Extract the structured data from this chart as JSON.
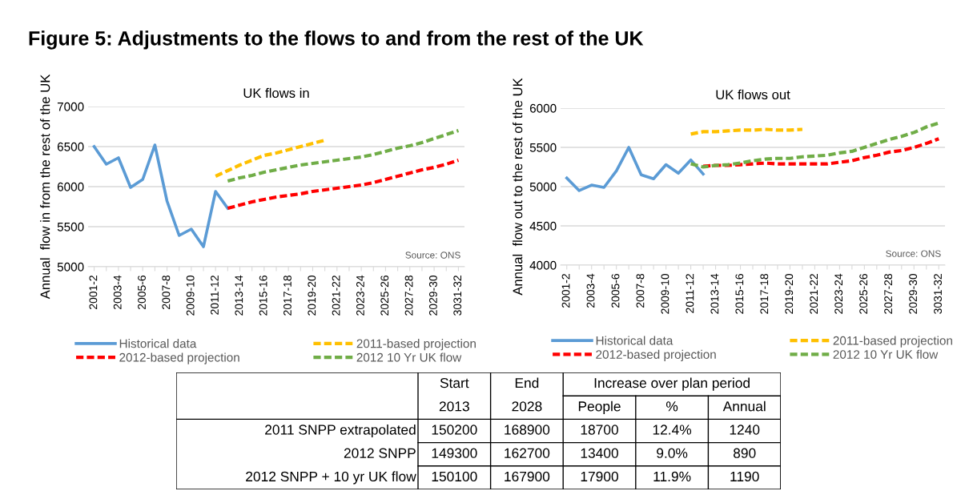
{
  "chart_data": [
    {
      "type": "line",
      "title": "UK flows in",
      "ylabel": "Annual  flow in from the rest of the UK",
      "annotations": [
        "Figure 5: Adjustments to the flows to and from the rest of the UK",
        "Source: ONS"
      ],
      "categories": [
        "2001-2",
        null,
        "2003-4",
        null,
        "2005-6",
        null,
        "2007-8",
        null,
        "2009-10",
        null,
        "2011-12",
        null,
        "2013-14",
        null,
        "2015-16",
        null,
        "2017-18",
        null,
        "2019-20",
        null,
        "2021-22",
        null,
        "2023-24",
        null,
        "2025-26",
        null,
        "2027-28",
        null,
        "2029-30",
        null,
        "3031-32"
      ],
      "ylim": [
        5000,
        7000
      ],
      "yticks": [
        5000,
        5500,
        6000,
        6500,
        7000
      ],
      "grid": "y",
      "legend": "bottom",
      "series": [
        {
          "name": "Historical data",
          "color": "#5b9bd5",
          "line_style": "solid",
          "values": [
            6500,
            6280,
            6360,
            5990,
            6090,
            6520,
            5820,
            5390,
            5470,
            5250,
            5940,
            5730,
            null,
            null,
            null,
            null,
            null,
            null,
            null,
            null,
            null,
            null,
            null,
            null,
            null,
            null,
            null,
            null,
            null,
            null,
            null
          ]
        },
        {
          "name": "2011-based projection",
          "color": "#ffc000",
          "line_style": "dashed",
          "values": [
            null,
            null,
            null,
            null,
            null,
            null,
            null,
            null,
            null,
            null,
            6130,
            6200,
            6270,
            6330,
            6390,
            6420,
            6460,
            6500,
            6540,
            6580,
            null,
            null,
            null,
            null,
            null,
            null,
            null,
            null,
            null,
            null,
            null
          ]
        },
        {
          "name": "2012-based projection",
          "color": "#ff0000",
          "line_style": "dashed",
          "values": [
            null,
            null,
            null,
            null,
            null,
            null,
            null,
            null,
            null,
            null,
            null,
            5730,
            5770,
            5810,
            5840,
            5870,
            5890,
            5910,
            5940,
            5960,
            5980,
            6000,
            6020,
            6050,
            6090,
            6130,
            6170,
            6210,
            6240,
            6280,
            6330
          ]
        },
        {
          "name": "2012 10 Yr UK flow",
          "color": "#70ad47",
          "line_style": "dashed",
          "values": [
            null,
            null,
            null,
            null,
            null,
            null,
            null,
            null,
            null,
            null,
            null,
            6070,
            6110,
            6140,
            6180,
            6210,
            6240,
            6270,
            6290,
            6310,
            6330,
            6350,
            6370,
            6400,
            6440,
            6480,
            6510,
            6550,
            6600,
            6650,
            6700
          ]
        }
      ]
    },
    {
      "type": "line",
      "title": "UK flows out",
      "ylabel": "Annual  flow out to the rest of the UK",
      "annotations": [
        "Source: ONS"
      ],
      "categories": [
        "2001-2",
        null,
        "2003-4",
        null,
        "2005-6",
        null,
        "2007-8",
        null,
        "2009-10",
        null,
        "2011-12",
        null,
        "2013-14",
        null,
        "2015-16",
        null,
        "2017-18",
        null,
        "2019-20",
        null,
        "2021-22",
        null,
        "2023-24",
        null,
        "2025-26",
        null,
        "2027-28",
        null,
        "2029-30",
        null,
        "3031-32"
      ],
      "ylim": [
        4000,
        6000
      ],
      "yticks": [
        4000,
        4500,
        5000,
        5500,
        6000
      ],
      "grid": "y",
      "legend": "bottom",
      "series": [
        {
          "name": "Historical data",
          "color": "#5b9bd5",
          "line_style": "solid",
          "values": [
            5110,
            4950,
            5020,
            4990,
            5200,
            5500,
            5150,
            5100,
            5280,
            5170,
            5340,
            5160,
            null,
            null,
            null,
            null,
            null,
            null,
            null,
            null,
            null,
            null,
            null,
            null,
            null,
            null,
            null,
            null,
            null,
            null,
            null
          ]
        },
        {
          "name": "2011-based projection",
          "color": "#ffc000",
          "line_style": "dashed",
          "values": [
            null,
            null,
            null,
            null,
            null,
            null,
            null,
            null,
            null,
            null,
            5670,
            5700,
            5700,
            5710,
            5720,
            5720,
            5730,
            5720,
            5720,
            5730,
            null,
            null,
            null,
            null,
            null,
            null,
            null,
            null,
            null,
            null,
            null
          ]
        },
        {
          "name": "2012-based projection",
          "color": "#ff0000",
          "line_style": "dashed",
          "values": [
            null,
            null,
            null,
            null,
            null,
            null,
            null,
            null,
            null,
            null,
            null,
            5260,
            5270,
            5270,
            5280,
            5290,
            5300,
            5290,
            5290,
            5290,
            5290,
            5290,
            5310,
            5330,
            5370,
            5400,
            5440,
            5460,
            5500,
            5550,
            5610
          ]
        },
        {
          "name": "2012 10 Yr UK flow",
          "color": "#70ad47",
          "line_style": "dashed",
          "values": [
            null,
            null,
            null,
            null,
            null,
            null,
            null,
            null,
            null,
            null,
            5290,
            5250,
            5270,
            5280,
            5300,
            5330,
            5350,
            5360,
            5360,
            5380,
            5390,
            5400,
            5430,
            5450,
            5500,
            5550,
            5600,
            5640,
            5690,
            5760,
            5810
          ]
        }
      ]
    },
    {
      "type": "other",
      "annotations": [
        "Increase over plan period"
      ],
      "categories": [
        "Start\n2013",
        "End\n2028",
        "People",
        "%",
        "Annual"
      ],
      "y_categories": [
        "2011 SNPP extrapolated",
        "2012 SNPP",
        "2012 SNPP + 10 yr UK flow"
      ],
      "cell_labels": [
        [
          "150200",
          "168900",
          "18700",
          "12.4%",
          "1240"
        ],
        [
          "149300",
          "162700",
          "13400",
          "9.0%",
          "890"
        ],
        [
          "150100",
          "167900",
          "17900",
          "11.9%",
          "1190"
        ]
      ]
    }
  ]
}
